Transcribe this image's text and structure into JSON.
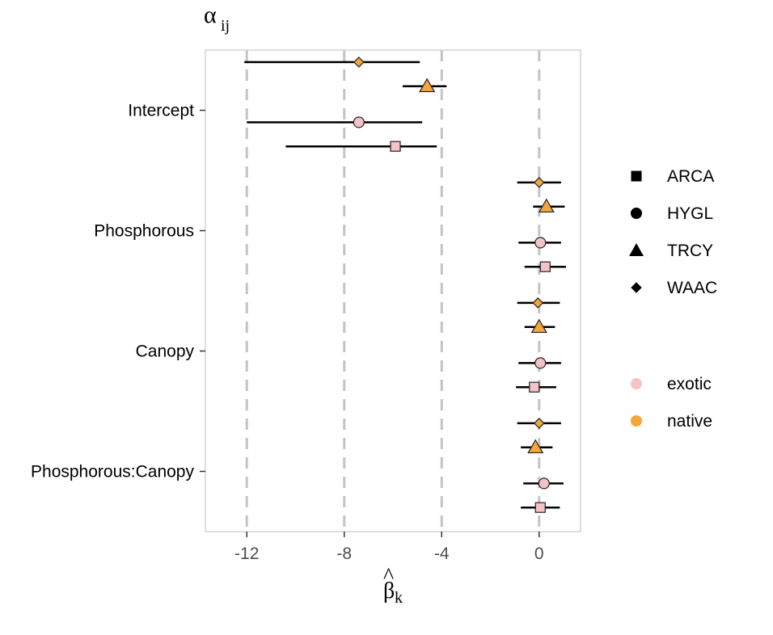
{
  "chart_data": {
    "type": "scatter",
    "title": "α",
    "title_subscript": "ij",
    "xlabel": "β",
    "xlabel_hat": "^",
    "xlabel_subscript": "k",
    "ylabel": "",
    "xlim": [
      -13.7,
      1.7
    ],
    "xticks": [
      -12,
      -8,
      -4,
      0
    ],
    "xtick_labels": [
      "-12",
      "-8",
      "-4",
      "0"
    ],
    "vlines_dashed_at": [
      -12,
      -8,
      -4,
      0
    ],
    "categories": [
      "Intercept",
      "Phosphorous",
      "Canopy",
      "Phosphorous:Canopy"
    ],
    "grid": false,
    "legend_position": "right",
    "shape_legend": [
      {
        "label": "ARCA",
        "shape": "square"
      },
      {
        "label": "HYGL",
        "shape": "circle"
      },
      {
        "label": "TRCY",
        "shape": "triangle"
      },
      {
        "label": "WAAC",
        "shape": "diamond"
      }
    ],
    "color_legend": [
      {
        "label": "exotic",
        "color": "#f4c2c8"
      },
      {
        "label": "native",
        "color": "#f4a63a"
      }
    ],
    "series": [
      {
        "name": "WAAC",
        "status": "native",
        "shape": "diamond",
        "estimate": [
          -7.4,
          0.0,
          -0.05,
          0.0
        ],
        "lower": [
          -12.1,
          -0.9,
          -0.9,
          -0.9
        ],
        "upper": [
          -4.9,
          0.9,
          0.85,
          0.9
        ]
      },
      {
        "name": "TRCY",
        "status": "native",
        "shape": "triangle",
        "estimate": [
          -4.6,
          0.3,
          0.0,
          -0.15
        ],
        "lower": [
          -5.6,
          -0.25,
          -0.6,
          -0.75
        ],
        "upper": [
          -3.8,
          1.05,
          0.65,
          0.55
        ]
      },
      {
        "name": "HYGL",
        "status": "exotic",
        "shape": "circle",
        "estimate": [
          -7.4,
          0.05,
          0.05,
          0.2
        ],
        "lower": [
          -12.0,
          -0.85,
          -0.85,
          -0.65
        ],
        "upper": [
          -4.8,
          0.9,
          0.9,
          1.0
        ]
      },
      {
        "name": "ARCA",
        "status": "exotic",
        "shape": "square",
        "estimate": [
          -5.9,
          0.25,
          -0.2,
          0.05
        ],
        "lower": [
          -10.4,
          -0.6,
          -0.95,
          -0.75
        ],
        "upper": [
          -4.2,
          1.1,
          0.7,
          0.85
        ]
      }
    ]
  }
}
